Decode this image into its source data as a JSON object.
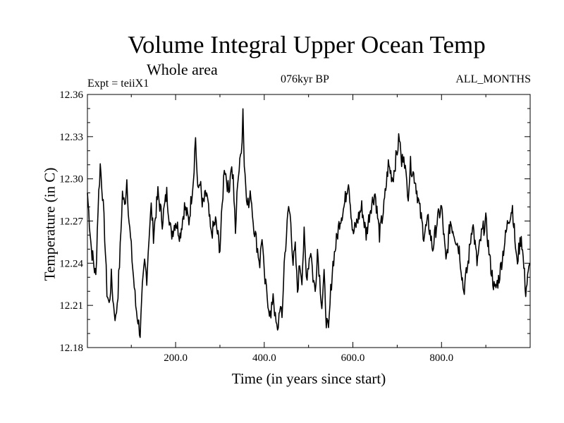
{
  "header": {
    "title": "Volume Integral Upper Ocean Temp",
    "subtitle": "Whole area",
    "experiment": "Expt = teiiX1",
    "period": "076kyr BP",
    "season": "ALL_MONTHS"
  },
  "chart_data": {
    "type": "line",
    "title": "Volume Integral Upper Ocean Temp",
    "subtitle": "Whole area",
    "xlabel": "Time (in years since start)",
    "ylabel": "Temperature (in C)",
    "xlim": [
      1,
      1000
    ],
    "ylim": [
      12.18,
      12.36
    ],
    "x_ticks": [
      200,
      400,
      600,
      800
    ],
    "x_tick_labels": [
      "200.0",
      "400.0",
      "600.0",
      "800.0"
    ],
    "y_ticks": [
      12.18,
      12.21,
      12.24,
      12.27,
      12.3,
      12.33,
      12.36
    ],
    "y_tick_labels": [
      "12.18",
      "12.21",
      "12.24",
      "12.27",
      "12.30",
      "12.33",
      "12.36"
    ],
    "grid": false,
    "series": [
      {
        "color": "#000000",
        "x": [
          1,
          10,
          20,
          25,
          30,
          35,
          40,
          45,
          50,
          55,
          60,
          65,
          70,
          75,
          80,
          85,
          90,
          95,
          100,
          105,
          110,
          115,
          120,
          125,
          130,
          135,
          140,
          145,
          150,
          160,
          170,
          180,
          190,
          200,
          210,
          220,
          230,
          240,
          245,
          250,
          255,
          260,
          270,
          280,
          290,
          300,
          305,
          310,
          315,
          320,
          325,
          330,
          335,
          340,
          345,
          350,
          352,
          355,
          360,
          365,
          370,
          375,
          380,
          385,
          390,
          395,
          400,
          405,
          410,
          415,
          420,
          425,
          430,
          435,
          440,
          445,
          450,
          455,
          460,
          465,
          470,
          475,
          480,
          485,
          490,
          495,
          500,
          505,
          510,
          515,
          520,
          525,
          530,
          535,
          540,
          545,
          550,
          555,
          560,
          570,
          580,
          590,
          600,
          610,
          620,
          630,
          640,
          650,
          660,
          670,
          680,
          690,
          700,
          705,
          710,
          715,
          720,
          725,
          730,
          740,
          750,
          760,
          770,
          780,
          790,
          800,
          810,
          820,
          830,
          840,
          850,
          860,
          870,
          880,
          890,
          900,
          910,
          920,
          930,
          940,
          950,
          960,
          970,
          980,
          990,
          1000
        ],
        "values": [
          12.29,
          12.25,
          12.23,
          12.28,
          12.31,
          12.29,
          12.26,
          12.22,
          12.21,
          12.23,
          12.21,
          12.2,
          12.22,
          12.25,
          12.29,
          12.28,
          12.3,
          12.27,
          12.25,
          12.23,
          12.21,
          12.2,
          12.19,
          12.22,
          12.24,
          12.23,
          12.26,
          12.28,
          12.26,
          12.29,
          12.27,
          12.29,
          12.26,
          12.27,
          12.26,
          12.28,
          12.27,
          12.3,
          12.33,
          12.29,
          12.3,
          12.28,
          12.29,
          12.26,
          12.27,
          12.25,
          12.28,
          12.31,
          12.3,
          12.29,
          12.31,
          12.3,
          12.26,
          12.3,
          12.31,
          12.33,
          12.35,
          12.31,
          12.29,
          12.28,
          12.29,
          12.27,
          12.26,
          12.25,
          12.24,
          12.26,
          12.23,
          12.22,
          12.21,
          12.2,
          12.22,
          12.2,
          12.19,
          12.21,
          12.2,
          12.24,
          12.26,
          12.28,
          12.27,
          12.24,
          12.25,
          12.22,
          12.24,
          12.23,
          12.26,
          12.23,
          12.24,
          12.25,
          12.23,
          12.22,
          12.25,
          12.23,
          12.21,
          12.23,
          12.2,
          12.19,
          12.22,
          12.24,
          12.25,
          12.27,
          12.28,
          12.3,
          12.26,
          12.27,
          12.28,
          12.26,
          12.28,
          12.29,
          12.26,
          12.28,
          12.31,
          12.3,
          12.32,
          12.33,
          12.31,
          12.32,
          12.3,
          12.29,
          12.31,
          12.3,
          12.28,
          12.26,
          12.27,
          12.25,
          12.27,
          12.28,
          12.24,
          12.27,
          12.26,
          12.25,
          12.22,
          12.24,
          12.27,
          12.24,
          12.26,
          12.27,
          12.24,
          12.22,
          12.23,
          12.25,
          12.27,
          12.28,
          12.24,
          12.26,
          12.22,
          12.24
        ]
      }
    ]
  }
}
